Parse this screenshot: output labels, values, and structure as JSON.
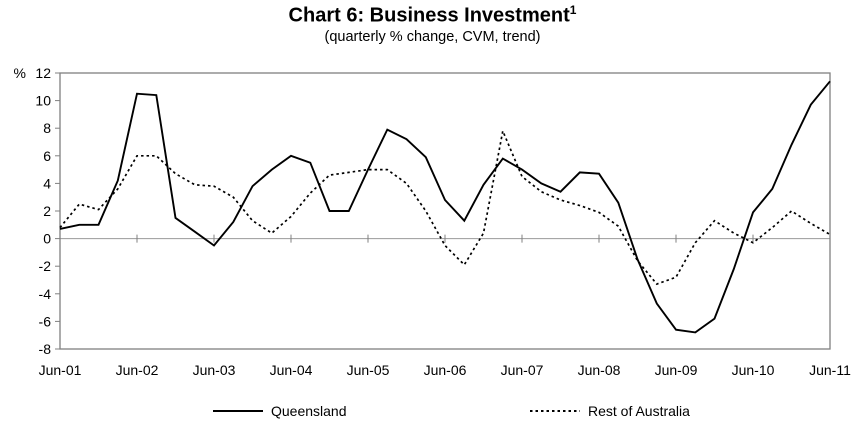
{
  "chart_data": {
    "type": "line",
    "title": "Chart 6: Business Investment",
    "title_superscript": "1",
    "subtitle": "(quarterly % change, CVM, trend)",
    "ylabel": "%",
    "ylim": [
      -8,
      12
    ],
    "ytick_step": 2,
    "gridlines": "zero-line-only",
    "legend_position": "bottom",
    "x_frequency": "quarterly",
    "x_tick_labels": [
      "Jun-01",
      "Jun-02",
      "Jun-03",
      "Jun-04",
      "Jun-05",
      "Jun-06",
      "Jun-07",
      "Jun-08",
      "Jun-09",
      "Jun-10",
      "Jun-11"
    ],
    "categories": [
      "Jun-01",
      "Sep-01",
      "Dec-01",
      "Mar-02",
      "Jun-02",
      "Sep-02",
      "Dec-02",
      "Mar-03",
      "Jun-03",
      "Sep-03",
      "Dec-03",
      "Mar-04",
      "Jun-04",
      "Sep-04",
      "Dec-04",
      "Mar-05",
      "Jun-05",
      "Sep-05",
      "Dec-05",
      "Mar-06",
      "Jun-06",
      "Sep-06",
      "Dec-06",
      "Mar-07",
      "Jun-07",
      "Sep-07",
      "Dec-07",
      "Mar-08",
      "Jun-08",
      "Sep-08",
      "Dec-08",
      "Mar-09",
      "Jun-09",
      "Sep-09",
      "Dec-09",
      "Mar-10",
      "Jun-10",
      "Sep-10",
      "Dec-10",
      "Mar-11",
      "Jun-11"
    ],
    "series": [
      {
        "name": "Queensland",
        "style": "solid",
        "color": "#000000",
        "values": [
          0.7,
          1.0,
          1.0,
          4.2,
          10.5,
          10.4,
          1.5,
          0.5,
          -0.5,
          1.2,
          3.8,
          5.0,
          6.0,
          5.5,
          2.0,
          2.0,
          5.0,
          7.9,
          7.2,
          5.9,
          2.8,
          1.3,
          3.9,
          5.8,
          5.0,
          4.0,
          3.4,
          4.8,
          4.7,
          2.6,
          -1.5,
          -4.7,
          -6.6,
          -6.8,
          -5.8,
          -2.2,
          1.9,
          3.6,
          6.8,
          9.7,
          11.4
        ]
      },
      {
        "name": "Rest of Australia",
        "style": "dotted",
        "color": "#000000",
        "values": [
          0.8,
          2.5,
          2.1,
          3.6,
          6.0,
          6.0,
          4.7,
          3.9,
          3.8,
          3.0,
          1.3,
          0.4,
          1.6,
          3.3,
          4.6,
          4.8,
          5.0,
          5.0,
          4.0,
          2.0,
          -0.5,
          -1.9,
          0.4,
          7.8,
          4.5,
          3.4,
          2.8,
          2.4,
          1.9,
          0.9,
          -1.6,
          -3.3,
          -2.8,
          -0.3,
          1.3,
          0.4,
          -0.3,
          0.8,
          2.0,
          1.1,
          0.3
        ]
      }
    ]
  },
  "colors": {
    "frame": "#808080",
    "zero_line": "#999999",
    "tick": "#808080",
    "line": "#000000",
    "text": "#000000",
    "background": "#ffffff"
  }
}
